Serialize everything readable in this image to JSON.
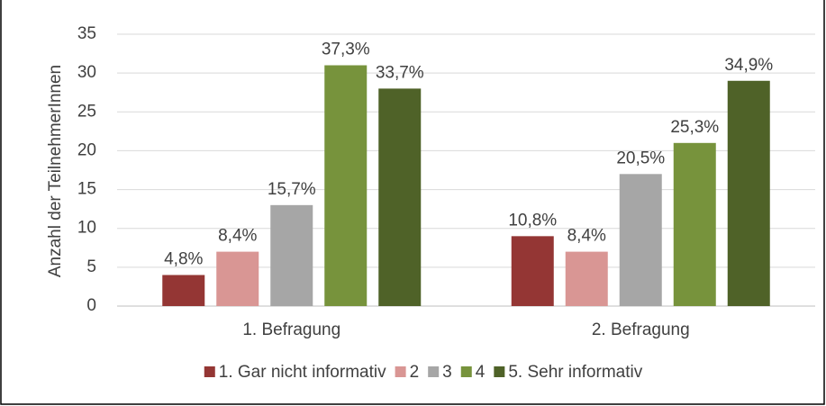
{
  "chart_data": {
    "type": "bar",
    "categories": [
      "1. Befragung",
      "2. Befragung"
    ],
    "series": [
      {
        "name": "1. Gar nicht informativ",
        "color": "#943634",
        "values": [
          4,
          9
        ],
        "value_labels": [
          "4,8%",
          "10,8%"
        ]
      },
      {
        "name": "2",
        "color": "#d99694",
        "values": [
          7,
          7
        ],
        "value_labels": [
          "8,4%",
          "8,4%"
        ]
      },
      {
        "name": "3",
        "color": "#a6a6a6",
        "values": [
          13,
          17
        ],
        "value_labels": [
          "15,7%",
          "20,5%"
        ]
      },
      {
        "name": "4",
        "color": "#77933c",
        "values": [
          31,
          21
        ],
        "value_labels": [
          "37,3%",
          "25,3%"
        ]
      },
      {
        "name": "5. Sehr informativ",
        "color": "#4f6228",
        "values": [
          28,
          29
        ],
        "value_labels": [
          "33,7%",
          "34,9%"
        ]
      }
    ],
    "y_label": "Anzahl der TeilnehmerInnen",
    "ylim": [
      0,
      35
    ],
    "yticks": [
      0,
      5,
      10,
      15,
      20,
      25,
      30,
      35
    ],
    "grid": true,
    "legend": "bottom"
  }
}
